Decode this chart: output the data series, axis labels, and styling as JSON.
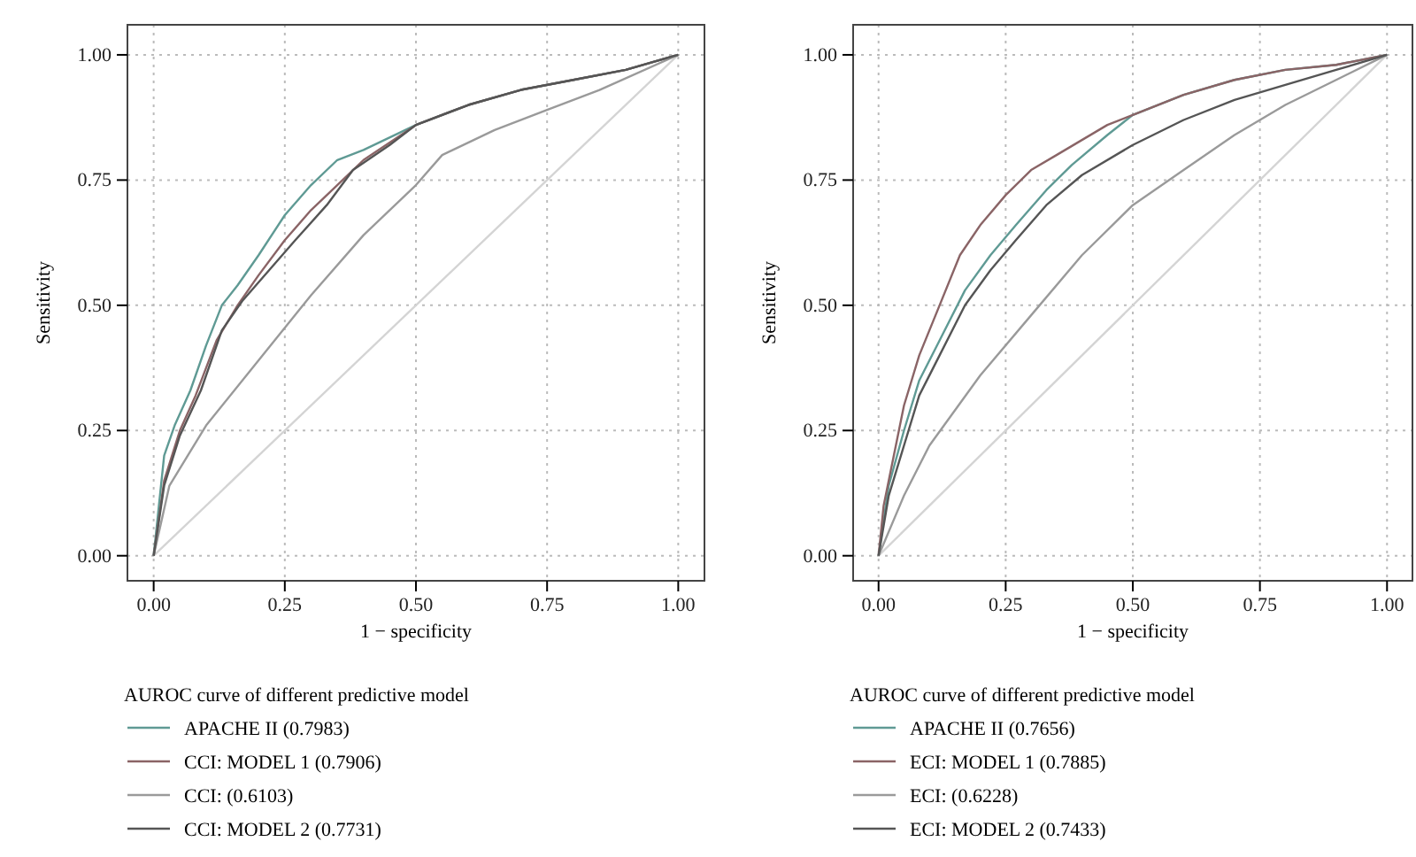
{
  "chart_data": [
    {
      "type": "line",
      "xlabel": "1 − specificity",
      "ylabel": "Sensitivity",
      "legend_title": "AUROC curve of different predictive model",
      "legend": "bottom",
      "grid": true,
      "line_style": "solid",
      "xlim": [
        -0.05,
        1.05
      ],
      "ylim": [
        -0.05,
        1.06
      ],
      "xticks": [
        {
          "value": 0,
          "label": "0.00"
        },
        {
          "value": 0.25,
          "label": "0.25"
        },
        {
          "value": 0.5,
          "label": "0.50"
        },
        {
          "value": 0.75,
          "label": "0.75"
        },
        {
          "value": 1,
          "label": "1.00"
        }
      ],
      "yticks": [
        {
          "value": 0,
          "label": "0.00"
        },
        {
          "value": 0.25,
          "label": "0.25"
        },
        {
          "value": 0.5,
          "label": "0.50"
        },
        {
          "value": 0.75,
          "label": "0.75"
        },
        {
          "value": 1,
          "label": "1.00"
        }
      ],
      "series": [
        {
          "color": "#d4d4d4",
          "x": [
            0,
            1
          ],
          "values": [
            0,
            1
          ]
        },
        {
          "name": "APACHE II (0.7983)",
          "color": "#5f9a94",
          "x": [
            0,
            0.01,
            0.02,
            0.04,
            0.07,
            0.1,
            0.13,
            0.16,
            0.2,
            0.25,
            0.3,
            0.35,
            0.4,
            0.5,
            0.6,
            0.7,
            0.8,
            0.9,
            1
          ],
          "values": [
            0,
            0.1,
            0.2,
            0.26,
            0.33,
            0.42,
            0.5,
            0.54,
            0.6,
            0.68,
            0.74,
            0.79,
            0.81,
            0.86,
            0.9,
            0.93,
            0.95,
            0.97,
            1
          ]
        },
        {
          "name": "CCI: MODEL 1 (0.7906)",
          "color": "#8a6466",
          "x": [
            0,
            0.02,
            0.05,
            0.08,
            0.12,
            0.16,
            0.2,
            0.25,
            0.3,
            0.35,
            0.4,
            0.5,
            0.6,
            0.7,
            0.8,
            0.9,
            1
          ],
          "values": [
            0,
            0.15,
            0.25,
            0.32,
            0.43,
            0.5,
            0.56,
            0.63,
            0.69,
            0.74,
            0.79,
            0.86,
            0.9,
            0.93,
            0.95,
            0.97,
            1
          ]
        },
        {
          "name": "CCI: (0.6103)",
          "color": "#9a9a9a",
          "x": [
            0,
            0.03,
            0.1,
            0.2,
            0.3,
            0.4,
            0.5,
            0.55,
            0.65,
            0.75,
            0.85,
            1
          ],
          "values": [
            0,
            0.14,
            0.26,
            0.39,
            0.52,
            0.64,
            0.74,
            0.8,
            0.85,
            0.89,
            0.93,
            1
          ]
        },
        {
          "name": "CCI: MODEL 2 (0.7731)",
          "color": "#555555",
          "x": [
            0,
            0.02,
            0.05,
            0.09,
            0.13,
            0.17,
            0.22,
            0.27,
            0.33,
            0.38,
            0.45,
            0.5,
            0.6,
            0.7,
            0.8,
            0.9,
            1
          ],
          "values": [
            0,
            0.14,
            0.24,
            0.33,
            0.45,
            0.51,
            0.57,
            0.63,
            0.7,
            0.77,
            0.82,
            0.86,
            0.9,
            0.93,
            0.95,
            0.97,
            1
          ]
        }
      ]
    },
    {
      "type": "line",
      "xlabel": "1 − specificity",
      "ylabel": "Sensitivity",
      "legend_title": "AUROC curve of different predictive model",
      "legend": "bottom",
      "grid": true,
      "line_style": "solid",
      "xlim": [
        -0.05,
        1.05
      ],
      "ylim": [
        -0.05,
        1.06
      ],
      "xticks": [
        {
          "value": 0,
          "label": "0.00"
        },
        {
          "value": 0.25,
          "label": "0.25"
        },
        {
          "value": 0.5,
          "label": "0.50"
        },
        {
          "value": 0.75,
          "label": "0.75"
        },
        {
          "value": 1,
          "label": "1.00"
        }
      ],
      "yticks": [
        {
          "value": 0,
          "label": "0.00"
        },
        {
          "value": 0.25,
          "label": "0.25"
        },
        {
          "value": 0.5,
          "label": "0.50"
        },
        {
          "value": 0.75,
          "label": "0.75"
        },
        {
          "value": 1,
          "label": "1.00"
        }
      ],
      "series": [
        {
          "color": "#d4d4d4",
          "x": [
            0,
            1
          ],
          "values": [
            0,
            1
          ]
        },
        {
          "name": "APACHE II (0.7656)",
          "color": "#5f9a94",
          "x": [
            0,
            0.02,
            0.05,
            0.08,
            0.12,
            0.17,
            0.22,
            0.27,
            0.33,
            0.38,
            0.45,
            0.5,
            0.6,
            0.7,
            0.8,
            0.9,
            1
          ],
          "values": [
            0,
            0.14,
            0.25,
            0.35,
            0.43,
            0.53,
            0.6,
            0.66,
            0.73,
            0.78,
            0.84,
            0.88,
            0.92,
            0.95,
            0.97,
            0.98,
            1
          ]
        },
        {
          "name": "ECI: MODEL 1 (0.7885)",
          "color": "#8a6466",
          "x": [
            0,
            0.01,
            0.03,
            0.05,
            0.08,
            0.12,
            0.16,
            0.2,
            0.25,
            0.3,
            0.35,
            0.4,
            0.45,
            0.5,
            0.6,
            0.7,
            0.8,
            0.9,
            1
          ],
          "values": [
            0,
            0.1,
            0.2,
            0.3,
            0.4,
            0.5,
            0.6,
            0.66,
            0.72,
            0.77,
            0.8,
            0.83,
            0.86,
            0.88,
            0.92,
            0.95,
            0.97,
            0.98,
            1
          ]
        },
        {
          "name": "ECI: (0.6228)",
          "color": "#9a9a9a",
          "x": [
            0,
            0.05,
            0.1,
            0.2,
            0.3,
            0.4,
            0.5,
            0.6,
            0.7,
            0.8,
            0.9,
            1
          ],
          "values": [
            0,
            0.12,
            0.22,
            0.36,
            0.48,
            0.6,
            0.7,
            0.77,
            0.84,
            0.9,
            0.95,
            1
          ]
        },
        {
          "name": "ECI: MODEL 2 (0.7433)",
          "color": "#555555",
          "x": [
            0,
            0.02,
            0.05,
            0.08,
            0.12,
            0.17,
            0.22,
            0.27,
            0.33,
            0.4,
            0.5,
            0.6,
            0.7,
            0.8,
            0.9,
            1
          ],
          "values": [
            0,
            0.12,
            0.22,
            0.32,
            0.4,
            0.5,
            0.57,
            0.63,
            0.7,
            0.76,
            0.82,
            0.87,
            0.91,
            0.94,
            0.97,
            1
          ]
        }
      ]
    }
  ]
}
